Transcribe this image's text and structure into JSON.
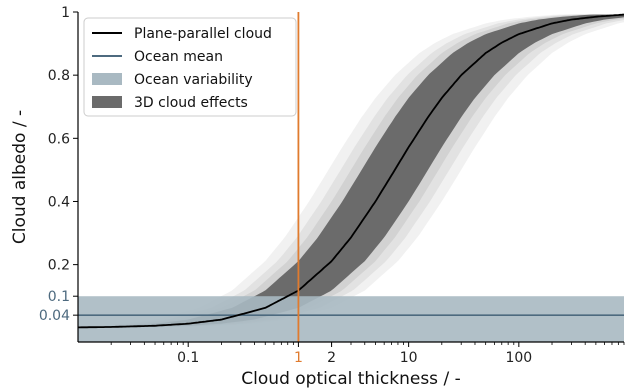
{
  "chart_data": {
    "type": "line",
    "xlabel": "Cloud optical thickness / -",
    "ylabel": "Cloud albedo / -",
    "x_scale": "log",
    "xlim": [
      0.01,
      900
    ],
    "ylim": [
      -0.045,
      1
    ],
    "x_ticks": [
      {
        "value": 0.1,
        "label": "0.1"
      },
      {
        "value": 1,
        "label": "1"
      },
      {
        "value": 2,
        "label": "2"
      },
      {
        "value": 10,
        "label": "10"
      },
      {
        "value": 100,
        "label": "100"
      }
    ],
    "y_ticks": [
      {
        "value": 0.04,
        "label": "0.04",
        "color": "#4d6a7f"
      },
      {
        "value": 0.1,
        "label": "0.1",
        "color": "#4d6a7f"
      },
      {
        "value": 0.2,
        "label": "0.2"
      },
      {
        "value": 0.4,
        "label": "0.4"
      },
      {
        "value": 0.6,
        "label": "0.6"
      },
      {
        "value": 0.8,
        "label": "0.8"
      },
      {
        "value": 1,
        "label": "1"
      }
    ],
    "highlight_x": {
      "value": 1,
      "color": "#e07b2e"
    },
    "legend_position": "upper-left",
    "grid": false,
    "series": [
      {
        "name": "Plane-parallel cloud",
        "kind": "line",
        "color": "#000000",
        "x": [
          0.01,
          0.02,
          0.05,
          0.1,
          0.2,
          0.5,
          1,
          2,
          3,
          5,
          7,
          10,
          15,
          20,
          30,
          50,
          70,
          100,
          200,
          300,
          500,
          900
        ],
        "y": [
          0.0013,
          0.0026,
          0.0065,
          0.013,
          0.026,
          0.063,
          0.118,
          0.211,
          0.286,
          0.4,
          0.483,
          0.572,
          0.667,
          0.728,
          0.8,
          0.87,
          0.903,
          0.93,
          0.964,
          0.976,
          0.985,
          0.992
        ]
      },
      {
        "name": "Ocean mean",
        "kind": "hline",
        "color": "#4d6a7f",
        "y": 0.04
      },
      {
        "name": "Ocean variability",
        "kind": "band",
        "color": "#a9b9c2",
        "y_range": [
          -0.045,
          0.1
        ]
      },
      {
        "name": "3D cloud effects",
        "kind": "band",
        "color": "#6b6b6b",
        "x_factor_range": [
          0.5,
          2
        ]
      }
    ]
  }
}
